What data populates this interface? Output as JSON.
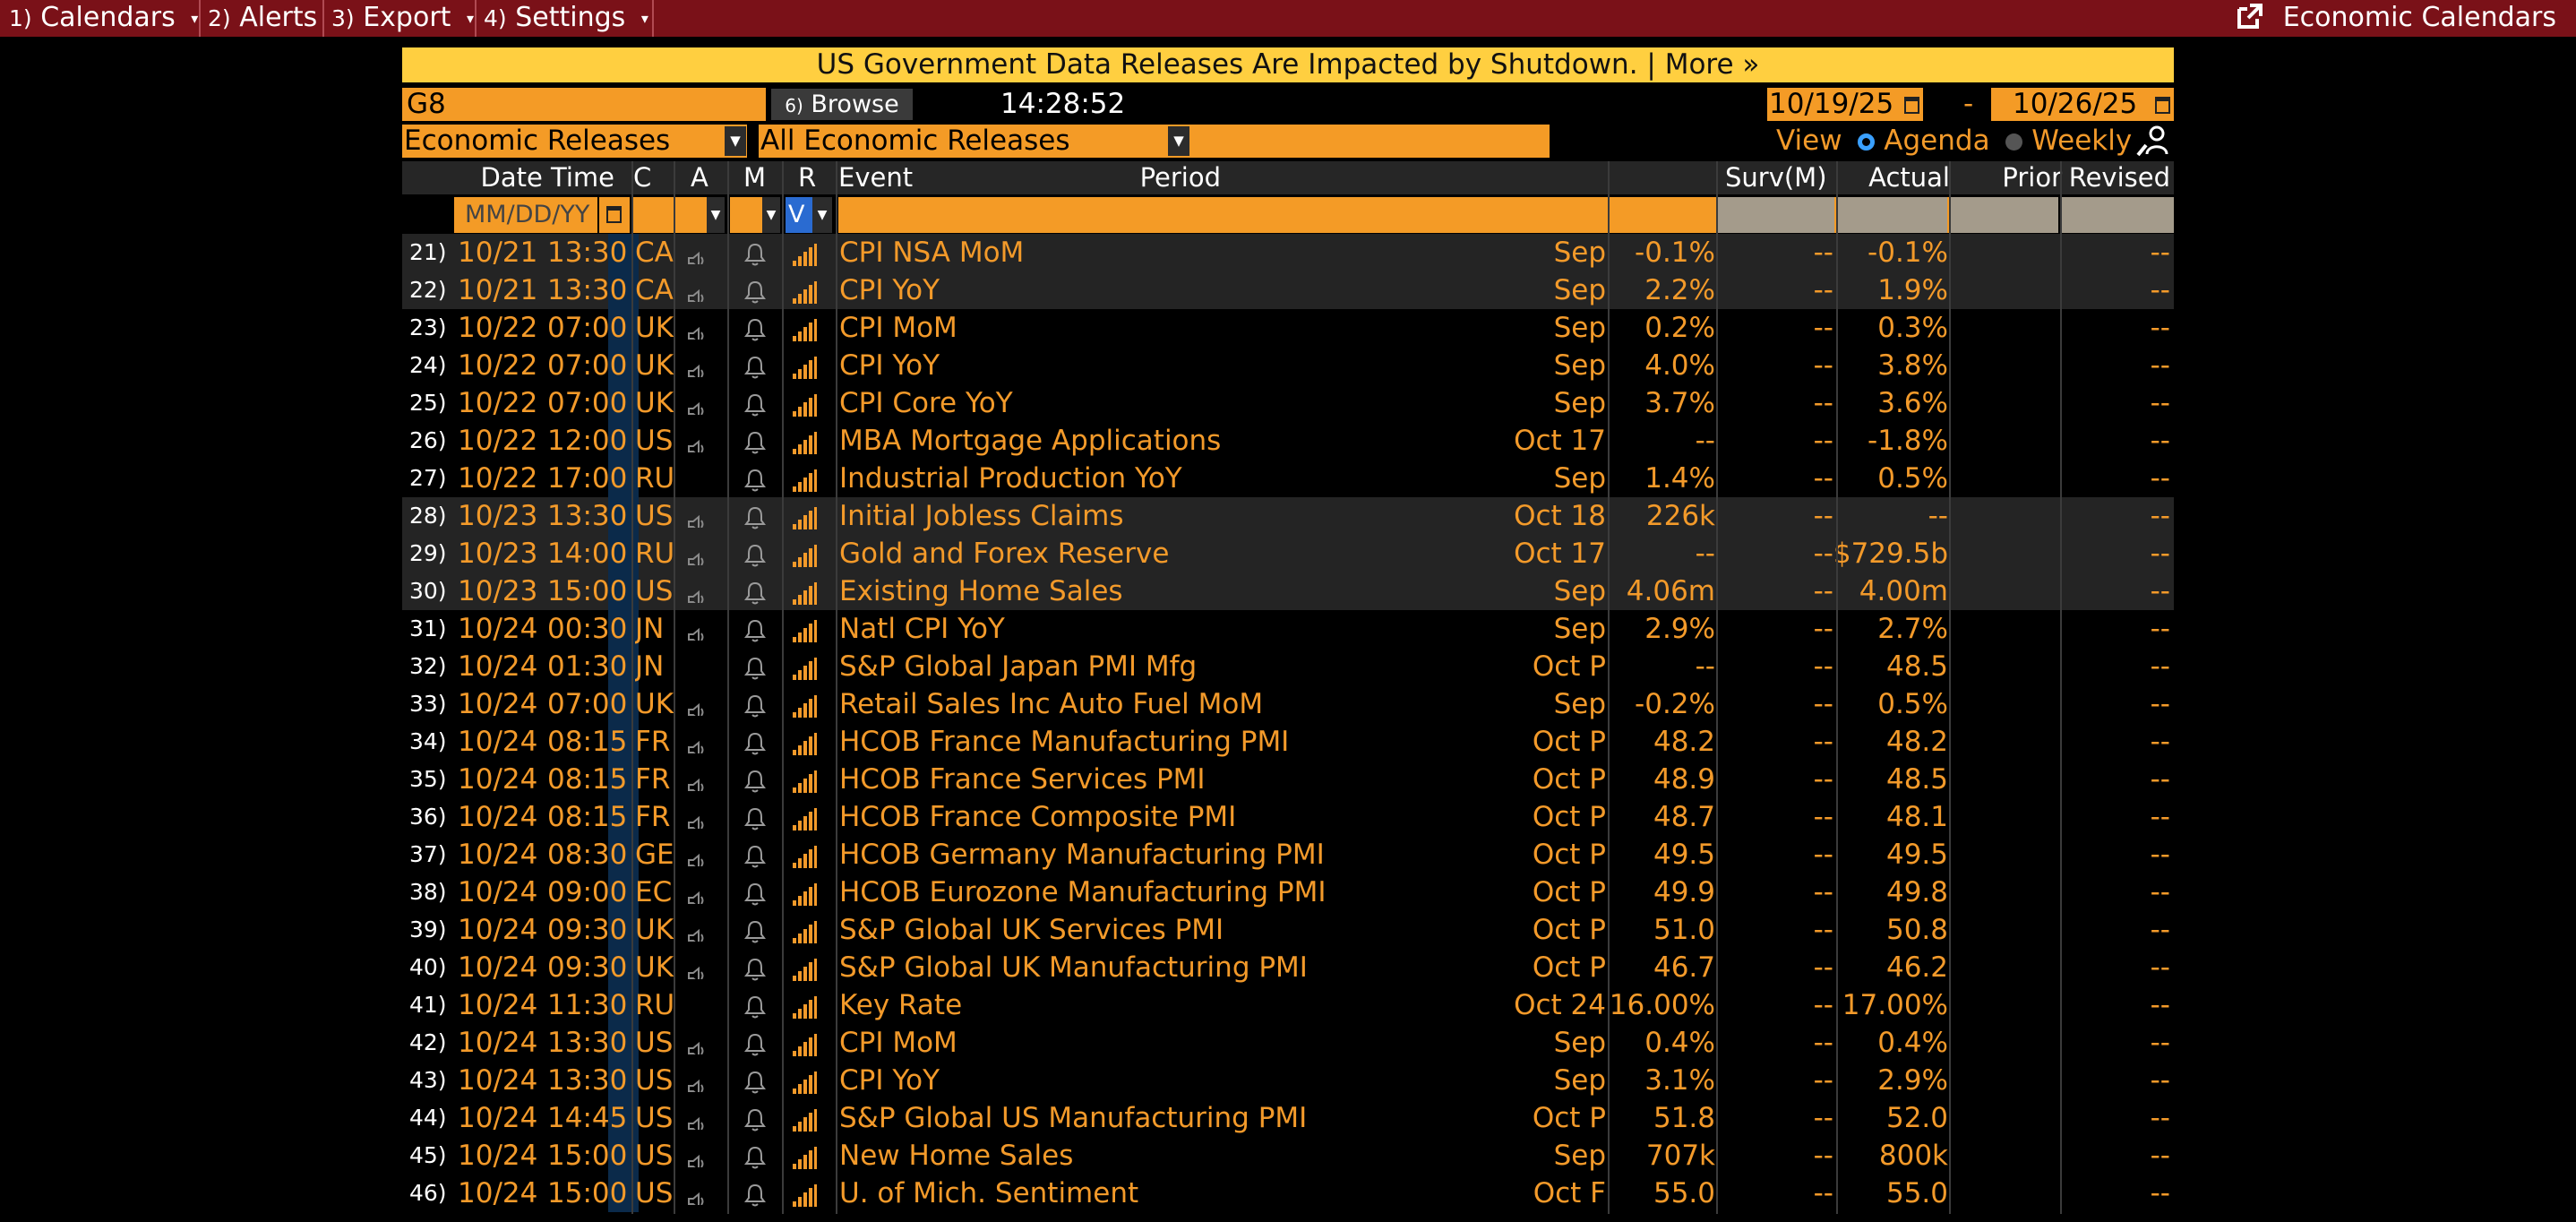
{
  "menubar": {
    "items": [
      {
        "num": "1)",
        "label": "Calendars",
        "arrow": "▾"
      },
      {
        "num": "2)",
        "label": "Alerts",
        "arrow": ""
      },
      {
        "num": "3)",
        "label": "Export",
        "arrow": "▾"
      },
      {
        "num": "4)",
        "label": "Settings",
        "arrow": "▾"
      }
    ],
    "right_label": "Economic Calendars",
    "right_icon": "external-link-icon"
  },
  "banner": {
    "text": "US Government Data Releases Are Impacted by Shutdown. | More »"
  },
  "controls": {
    "group": "G8",
    "browse_num": "6)",
    "browse_label": "Browse",
    "time": "14:28:52",
    "date_from": "10/19/25",
    "date_sep": "-",
    "date_to": "10/26/25",
    "filter1": "Economic Releases",
    "filter2": "All Economic Releases",
    "view_label": "View",
    "view_agenda": "Agenda",
    "view_weekly": "Weekly"
  },
  "columns": {
    "datetime": "Date Time",
    "c": "C",
    "a": "A",
    "m": "M",
    "r": "R",
    "event": "Event",
    "period": "Period",
    "surv": "Surv(M)",
    "actual": "Actual",
    "prior": "Prior",
    "revised": "Revised"
  },
  "filters": {
    "date_placeholder": "MM/DD/YY",
    "r_value": "V"
  },
  "rows": [
    {
      "n": "21)",
      "date": "10/21",
      "time": "13:30",
      "c": "CA",
      "a": true,
      "event": "CPI NSA MoM",
      "period": "Sep",
      "surv": "-0.1%",
      "actual": "--",
      "prior": "-0.1%",
      "revised": "--",
      "alt": true
    },
    {
      "n": "22)",
      "date": "10/21",
      "time": "13:30",
      "c": "CA",
      "a": true,
      "event": "CPI YoY",
      "period": "Sep",
      "surv": "2.2%",
      "actual": "--",
      "prior": "1.9%",
      "revised": "--",
      "alt": true
    },
    {
      "n": "23)",
      "date": "10/22",
      "time": "07:00",
      "c": "UK",
      "a": true,
      "event": "CPI MoM",
      "period": "Sep",
      "surv": "0.2%",
      "actual": "--",
      "prior": "0.3%",
      "revised": "--",
      "alt": false
    },
    {
      "n": "24)",
      "date": "10/22",
      "time": "07:00",
      "c": "UK",
      "a": true,
      "event": "CPI YoY",
      "period": "Sep",
      "surv": "4.0%",
      "actual": "--",
      "prior": "3.8%",
      "revised": "--",
      "alt": false
    },
    {
      "n": "25)",
      "date": "10/22",
      "time": "07:00",
      "c": "UK",
      "a": true,
      "event": "CPI Core YoY",
      "period": "Sep",
      "surv": "3.7%",
      "actual": "--",
      "prior": "3.6%",
      "revised": "--",
      "alt": false
    },
    {
      "n": "26)",
      "date": "10/22",
      "time": "12:00",
      "c": "US",
      "a": true,
      "event": "MBA Mortgage Applications",
      "period": "Oct 17",
      "surv": "--",
      "actual": "--",
      "prior": "-1.8%",
      "revised": "--",
      "alt": false
    },
    {
      "n": "27)",
      "date": "10/22",
      "time": "17:00",
      "c": "RU",
      "a": false,
      "event": "Industrial Production YoY",
      "period": "Sep",
      "surv": "1.4%",
      "actual": "--",
      "prior": "0.5%",
      "revised": "--",
      "alt": false
    },
    {
      "n": "28)",
      "date": "10/23",
      "time": "13:30",
      "c": "US",
      "a": true,
      "event": "Initial Jobless Claims",
      "period": "Oct 18",
      "surv": "226k",
      "actual": "--",
      "prior": "--",
      "revised": "--",
      "alt": true
    },
    {
      "n": "29)",
      "date": "10/23",
      "time": "14:00",
      "c": "RU",
      "a": true,
      "event": "Gold and Forex Reserve",
      "period": "Oct 17",
      "surv": "--",
      "actual": "--",
      "prior": "$729.5b",
      "revised": "--",
      "alt": true
    },
    {
      "n": "30)",
      "date": "10/23",
      "time": "15:00",
      "c": "US",
      "a": true,
      "event": "Existing Home Sales",
      "period": "Sep",
      "surv": "4.06m",
      "actual": "--",
      "prior": "4.00m",
      "revised": "--",
      "alt": true
    },
    {
      "n": "31)",
      "date": "10/24",
      "time": "00:30",
      "c": "JN",
      "a": true,
      "event": "Natl CPI YoY",
      "period": "Sep",
      "surv": "2.9%",
      "actual": "--",
      "prior": "2.7%",
      "revised": "--",
      "alt": false
    },
    {
      "n": "32)",
      "date": "10/24",
      "time": "01:30",
      "c": "JN",
      "a": false,
      "event": "S&P Global Japan PMI Mfg",
      "period": "Oct P",
      "surv": "--",
      "actual": "--",
      "prior": "48.5",
      "revised": "--",
      "alt": false
    },
    {
      "n": "33)",
      "date": "10/24",
      "time": "07:00",
      "c": "UK",
      "a": true,
      "event": "Retail Sales Inc Auto Fuel MoM",
      "period": "Sep",
      "surv": "-0.2%",
      "actual": "--",
      "prior": "0.5%",
      "revised": "--",
      "alt": false
    },
    {
      "n": "34)",
      "date": "10/24",
      "time": "08:15",
      "c": "FR",
      "a": true,
      "event": "HCOB France Manufacturing PMI",
      "period": "Oct P",
      "surv": "48.2",
      "actual": "--",
      "prior": "48.2",
      "revised": "--",
      "alt": false
    },
    {
      "n": "35)",
      "date": "10/24",
      "time": "08:15",
      "c": "FR",
      "a": true,
      "event": "HCOB France Services PMI",
      "period": "Oct P",
      "surv": "48.9",
      "actual": "--",
      "prior": "48.5",
      "revised": "--",
      "alt": false
    },
    {
      "n": "36)",
      "date": "10/24",
      "time": "08:15",
      "c": "FR",
      "a": true,
      "event": "HCOB France Composite PMI",
      "period": "Oct P",
      "surv": "48.7",
      "actual": "--",
      "prior": "48.1",
      "revised": "--",
      "alt": false
    },
    {
      "n": "37)",
      "date": "10/24",
      "time": "08:30",
      "c": "GE",
      "a": true,
      "event": "HCOB Germany Manufacturing PMI",
      "period": "Oct P",
      "surv": "49.5",
      "actual": "--",
      "prior": "49.5",
      "revised": "--",
      "alt": false
    },
    {
      "n": "38)",
      "date": "10/24",
      "time": "09:00",
      "c": "EC",
      "a": true,
      "event": "HCOB Eurozone Manufacturing PMI",
      "period": "Oct P",
      "surv": "49.9",
      "actual": "--",
      "prior": "49.8",
      "revised": "--",
      "alt": false
    },
    {
      "n": "39)",
      "date": "10/24",
      "time": "09:30",
      "c": "UK",
      "a": true,
      "event": "S&P Global UK Services PMI",
      "period": "Oct P",
      "surv": "51.0",
      "actual": "--",
      "prior": "50.8",
      "revised": "--",
      "alt": false
    },
    {
      "n": "40)",
      "date": "10/24",
      "time": "09:30",
      "c": "UK",
      "a": true,
      "event": "S&P Global UK Manufacturing PMI",
      "period": "Oct P",
      "surv": "46.7",
      "actual": "--",
      "prior": "46.2",
      "revised": "--",
      "alt": false
    },
    {
      "n": "41)",
      "date": "10/24",
      "time": "11:30",
      "c": "RU",
      "a": false,
      "event": "Key Rate",
      "period": "Oct 24",
      "surv": "16.00%",
      "actual": "--",
      "prior": "17.00%",
      "revised": "--",
      "alt": false
    },
    {
      "n": "42)",
      "date": "10/24",
      "time": "13:30",
      "c": "US",
      "a": true,
      "event": "CPI MoM",
      "period": "Sep",
      "surv": "0.4%",
      "actual": "--",
      "prior": "0.4%",
      "revised": "--",
      "alt": false
    },
    {
      "n": "43)",
      "date": "10/24",
      "time": "13:30",
      "c": "US",
      "a": true,
      "event": "CPI YoY",
      "period": "Sep",
      "surv": "3.1%",
      "actual": "--",
      "prior": "2.9%",
      "revised": "--",
      "alt": false
    },
    {
      "n": "44)",
      "date": "10/24",
      "time": "14:45",
      "c": "US",
      "a": true,
      "event": "S&P Global US Manufacturing PMI",
      "period": "Oct P",
      "surv": "51.8",
      "actual": "--",
      "prior": "52.0",
      "revised": "--",
      "alt": false
    },
    {
      "n": "45)",
      "date": "10/24",
      "time": "15:00",
      "c": "US",
      "a": true,
      "event": "New Home Sales",
      "period": "Sep",
      "surv": "707k",
      "actual": "--",
      "prior": "800k",
      "revised": "--",
      "alt": false
    },
    {
      "n": "46)",
      "date": "10/24",
      "time": "15:00",
      "c": "US",
      "a": true,
      "event": "U. of Mich. Sentiment",
      "period": "Oct F",
      "surv": "55.0",
      "actual": "--",
      "prior": "55.0",
      "revised": "--",
      "alt": false
    }
  ]
}
